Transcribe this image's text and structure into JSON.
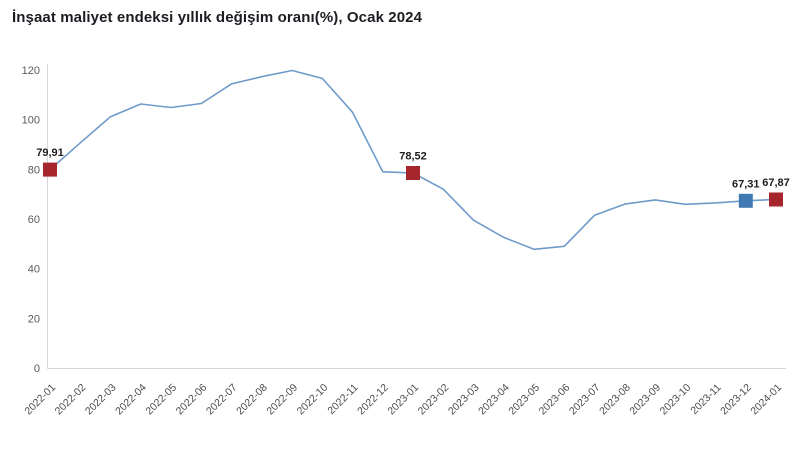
{
  "title": "İnşaat maliyet endeksi yıllık değişim oranı(%), Ocak 2024",
  "colors": {
    "line": "#6f9bc9",
    "marker_red": "#a5262c",
    "marker_blue": "#4179b4",
    "axis": "#d6d6d6",
    "tick_text": "#5a5a5a",
    "title_text": "#1c1c22",
    "background": "#ffffff"
  },
  "chart_data": {
    "type": "line",
    "title": "İnşaat maliyet endeksi yıllık değişim oranı(%), Ocak 2024",
    "xlabel": "",
    "ylabel": "",
    "x": [
      "2022-01",
      "2022-02",
      "2022-03",
      "2022-04",
      "2022-05",
      "2022-06",
      "2022-07",
      "2022-08",
      "2022-09",
      "2022-10",
      "2022-11",
      "2022-12",
      "2023-01",
      "2023-02",
      "2023-03",
      "2023-04",
      "2023-05",
      "2023-06",
      "2023-07",
      "2023-08",
      "2023-09",
      "2023-10",
      "2023-11",
      "2023-12",
      "2024-01"
    ],
    "values": [
      79.91,
      90.7,
      101.2,
      106.3,
      104.9,
      106.5,
      114.4,
      117.3,
      119.8,
      116.6,
      103.0,
      79.0,
      78.52,
      72.0,
      59.5,
      52.6,
      47.8,
      49.0,
      61.5,
      66.0,
      67.7,
      65.9,
      66.5,
      67.31,
      67.87
    ],
    "ylim": [
      0,
      120
    ],
    "yticks": [
      0,
      20,
      40,
      60,
      80,
      100,
      120
    ],
    "grid": false,
    "legend": "none",
    "annotated_points": [
      {
        "x": "2022-01",
        "value": 79.91,
        "label": "79,91",
        "marker": "red"
      },
      {
        "x": "2023-01",
        "value": 78.52,
        "label": "78,52",
        "marker": "red"
      },
      {
        "x": "2023-12",
        "value": 67.31,
        "label": "67,31",
        "marker": "blue"
      },
      {
        "x": "2024-01",
        "value": 67.87,
        "label": "67,87",
        "marker": "red"
      }
    ]
  }
}
